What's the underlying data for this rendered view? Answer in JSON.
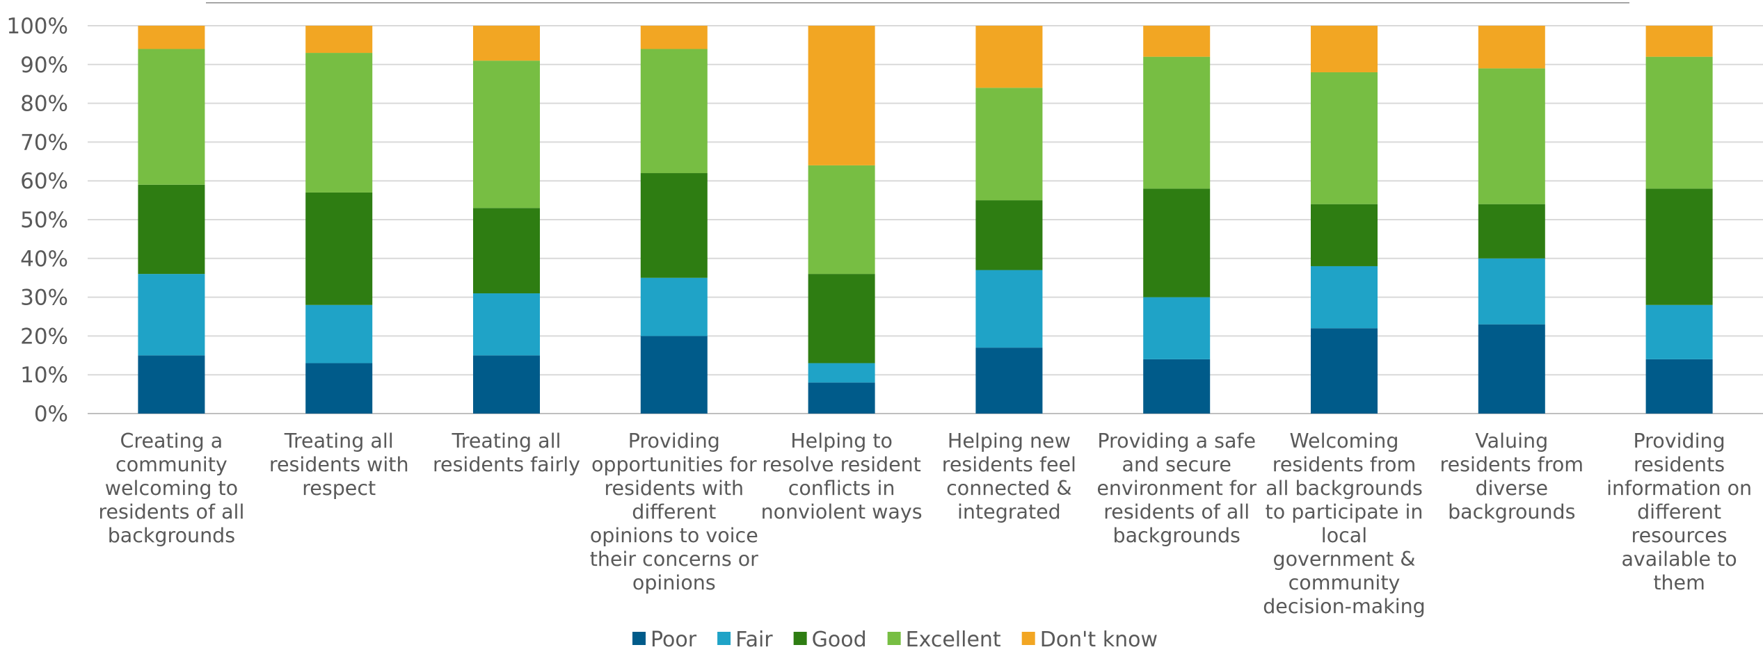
{
  "chart_data": {
    "type": "bar",
    "stacked": true,
    "percent": true,
    "title": "",
    "xlabel": "",
    "ylabel": "",
    "ylim": [
      0,
      100
    ],
    "yticks": [
      "0%",
      "10%",
      "20%",
      "30%",
      "40%",
      "50%",
      "60%",
      "70%",
      "80%",
      "90%",
      "100%"
    ],
    "grid": true,
    "legend_position": "bottom",
    "categories": [
      "Creating a community welcoming to residents of all backgrounds",
      "Treating all residents with respect",
      "Treating all residents fairly",
      "Providing opportunities for residents with different opinions to voice their concerns or opinions",
      "Helping to resolve resident conflicts in nonviolent ways",
      "Helping new residents feel connected & integrated",
      "Providing a safe and secure environment for residents of all backgrounds",
      "Welcoming residents from all backgrounds to participate in local government & community decision-making",
      "Valuing residents from diverse backgrounds",
      "Providing residents information on different resources available to them"
    ],
    "category_lines": [
      [
        "Creating a",
        "community",
        "welcoming to",
        "residents of all",
        "backgrounds"
      ],
      [
        "Treating all",
        "residents with",
        "respect"
      ],
      [
        "Treating all",
        "residents fairly"
      ],
      [
        "Providing",
        "opportunities for",
        "residents with",
        "different",
        "opinions to voice",
        "their concerns or",
        "opinions"
      ],
      [
        "Helping to",
        "resolve resident",
        "conflicts in",
        "nonviolent ways"
      ],
      [
        "Helping new",
        "residents feel",
        "connected &",
        "integrated"
      ],
      [
        "Providing a safe",
        "and secure",
        "environment for",
        "residents of all",
        "backgrounds"
      ],
      [
        "Welcoming",
        "residents from",
        "all backgrounds",
        "to participate in",
        "local",
        "government &",
        "community",
        "decision-making"
      ],
      [
        "Valuing",
        "residents from",
        "diverse",
        "backgrounds"
      ],
      [
        "Providing",
        "residents",
        "information on",
        "different",
        "resources",
        "available to",
        "them"
      ]
    ],
    "series": [
      {
        "name": "Poor",
        "color": "#005b8a",
        "values": [
          15,
          13,
          15,
          20,
          8,
          17,
          14,
          22,
          23,
          14
        ]
      },
      {
        "name": "Fair",
        "color": "#1fa3c7",
        "values": [
          21,
          15,
          16,
          15,
          5,
          20,
          16,
          16,
          17,
          14
        ]
      },
      {
        "name": "Good",
        "color": "#2e7d12",
        "values": [
          23,
          29,
          22,
          27,
          23,
          18,
          28,
          16,
          14,
          30
        ]
      },
      {
        "name": "Excellent",
        "color": "#77be43",
        "values": [
          35,
          36,
          38,
          32,
          28,
          29,
          34,
          34,
          35,
          34
        ]
      },
      {
        "name": "Don't know",
        "color": "#f2a623",
        "values": [
          6,
          7,
          9,
          6,
          36,
          16,
          8,
          12,
          11,
          8
        ]
      }
    ]
  }
}
